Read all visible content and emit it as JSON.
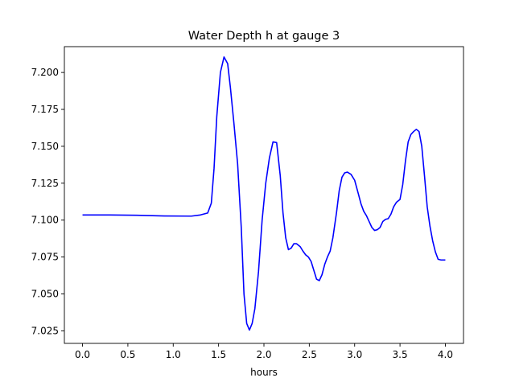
{
  "chart_data": {
    "type": "line",
    "title": "Water Depth h at gauge 3",
    "xlabel": "hours",
    "ylabel": "",
    "xlim": [
      -0.2,
      4.2
    ],
    "ylim": [
      7.0165,
      7.2175
    ],
    "xticks": [
      0.0,
      0.5,
      1.0,
      1.5,
      2.0,
      2.5,
      3.0,
      3.5,
      4.0
    ],
    "xtick_labels": [
      "0.0",
      "0.5",
      "1.0",
      "1.5",
      "2.0",
      "2.5",
      "3.0",
      "3.5",
      "4.0"
    ],
    "yticks": [
      7.025,
      7.05,
      7.075,
      7.1,
      7.125,
      7.15,
      7.175,
      7.2
    ],
    "ytick_labels": [
      "7.025",
      "7.050",
      "7.075",
      "7.100",
      "7.125",
      "7.150",
      "7.175",
      "7.200"
    ],
    "grid": false,
    "series_color": "#0000ff",
    "series": [
      {
        "x": [
          0.0,
          0.3,
          0.6,
          0.9,
          1.2,
          1.3,
          1.38,
          1.42,
          1.45,
          1.48,
          1.52,
          1.56,
          1.6,
          1.63,
          1.67,
          1.71,
          1.75,
          1.78,
          1.81,
          1.84,
          1.87,
          1.9,
          1.94,
          1.98,
          2.02,
          2.06,
          2.1,
          2.14,
          2.18,
          2.21,
          2.24,
          2.27,
          2.3,
          2.33,
          2.36,
          2.4,
          2.43,
          2.46,
          2.49,
          2.52,
          2.55,
          2.58,
          2.61,
          2.64,
          2.67,
          2.7,
          2.73,
          2.76,
          2.8,
          2.83,
          2.86,
          2.89,
          2.92,
          2.96,
          3.0,
          3.04,
          3.07,
          3.1,
          3.13,
          3.16,
          3.19,
          3.22,
          3.25,
          3.28,
          3.31,
          3.34,
          3.37,
          3.4,
          3.43,
          3.46,
          3.5,
          3.53,
          3.56,
          3.59,
          3.62,
          3.65,
          3.68,
          3.71,
          3.74,
          3.77,
          3.8,
          3.83,
          3.86,
          3.89,
          3.92,
          3.95,
          3.97,
          4.0
        ],
        "y": [
          7.1035,
          7.1035,
          7.1033,
          7.1028,
          7.1027,
          7.1035,
          7.1048,
          7.1115,
          7.135,
          7.17,
          7.2,
          7.2105,
          7.206,
          7.19,
          7.165,
          7.138,
          7.095,
          7.05,
          7.03,
          7.0255,
          7.03,
          7.04,
          7.065,
          7.1,
          7.125,
          7.142,
          7.153,
          7.1525,
          7.13,
          7.105,
          7.088,
          7.08,
          7.081,
          7.084,
          7.084,
          7.082,
          7.079,
          7.0765,
          7.075,
          7.072,
          7.066,
          7.06,
          7.059,
          7.063,
          7.07,
          7.075,
          7.079,
          7.088,
          7.105,
          7.12,
          7.129,
          7.132,
          7.1325,
          7.131,
          7.127,
          7.118,
          7.111,
          7.106,
          7.103,
          7.099,
          7.095,
          7.093,
          7.0935,
          7.095,
          7.099,
          7.1005,
          7.101,
          7.104,
          7.109,
          7.112,
          7.114,
          7.124,
          7.14,
          7.153,
          7.158,
          7.16,
          7.1615,
          7.16,
          7.15,
          7.13,
          7.109,
          7.096,
          7.086,
          7.0785,
          7.0735,
          7.073,
          7.073,
          7.073
        ]
      }
    ]
  }
}
